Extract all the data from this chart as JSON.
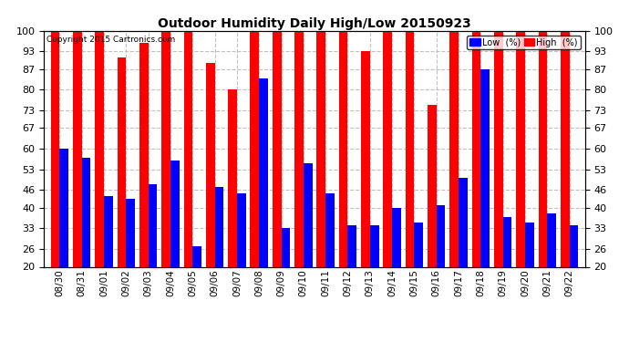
{
  "title": "Outdoor Humidity Daily High/Low 20150923",
  "copyright": "Copyright 2015 Cartronics.com",
  "ylim": [
    20,
    100
  ],
  "yticks": [
    20,
    26,
    33,
    40,
    46,
    53,
    60,
    67,
    73,
    80,
    87,
    93,
    100
  ],
  "dates": [
    "08/30",
    "08/31",
    "09/01",
    "09/02",
    "09/03",
    "09/04",
    "09/05",
    "09/06",
    "09/07",
    "09/08",
    "09/09",
    "09/10",
    "09/11",
    "09/12",
    "09/13",
    "09/14",
    "09/15",
    "09/16",
    "09/17",
    "09/18",
    "09/19",
    "09/20",
    "09/21",
    "09/22"
  ],
  "high": [
    100,
    100,
    100,
    91,
    96,
    100,
    100,
    89,
    80,
    100,
    100,
    100,
    100,
    100,
    93,
    100,
    100,
    75,
    100,
    100,
    100,
    100,
    100,
    100
  ],
  "low": [
    60,
    57,
    44,
    43,
    48,
    56,
    27,
    47,
    45,
    84,
    33,
    55,
    45,
    34,
    34,
    40,
    35,
    41,
    50,
    87,
    37,
    35,
    38,
    34
  ],
  "high_color": "#ff0000",
  "low_color": "#0000ff",
  "bg_color": "#ffffff",
  "grid_color": "#c0c0c0",
  "legend_low_label": "Low  (%)",
  "legend_high_label": "High  (%)"
}
